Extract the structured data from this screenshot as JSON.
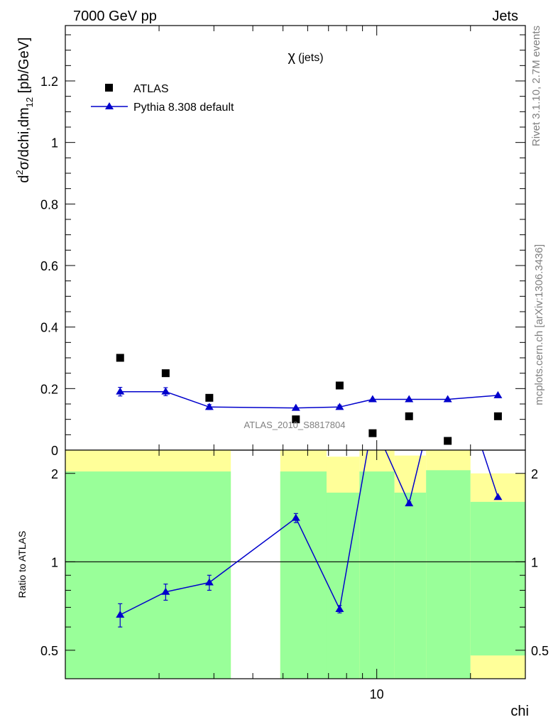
{
  "header": {
    "left": "7000 GeV pp",
    "right": "Jets"
  },
  "side_labels": {
    "rivet": "Rivet 3.1.10,  2.7M events",
    "mcplots": "mcplots.cern.ch [arXiv:1306.3436]"
  },
  "watermark": "ATLAS_2010_S8817804",
  "colors": {
    "data": "#000000",
    "mc": "#0000cc",
    "band_inner": "#99ff99",
    "band_outer": "#ffff99"
  },
  "chart_data": [
    {
      "type": "scatter",
      "title": "χ (jets)",
      "title_parts": {
        "symbol": "χ",
        "suffix": "(jets)"
      },
      "ylabel": "d²σ/dchi,dm₁₂ [pb/GeV]",
      "ylabel_parts": {
        "d": "d",
        "sup": "2",
        "mid": "σ/dchi,dm",
        "sub": "12",
        "tail": " [pb/GeV]"
      },
      "xscale": "log",
      "xlim": [
        1.0,
        30.0
      ],
      "ylim": [
        0,
        1.38
      ],
      "yticks": [
        0,
        0.2,
        0.4,
        0.6,
        0.8,
        1,
        1.2
      ],
      "ytick_labels": [
        "0",
        "0.2",
        "0.4",
        "0.6",
        "0.8",
        "1",
        "1.2"
      ],
      "legend_position": "top-left",
      "series": [
        {
          "name": "ATLAS",
          "marker": "square",
          "x": [
            1.5,
            2.1,
            2.9,
            5.5,
            7.6,
            9.7,
            12.7,
            16.9,
            24.5
          ],
          "y": [
            0.3,
            0.25,
            0.17,
            0.1,
            0.21,
            0.055,
            0.11,
            0.03,
            0.11
          ]
        },
        {
          "name": "Pythia 8.308 default",
          "marker": "triangle",
          "x": [
            1.5,
            2.1,
            2.9,
            5.5,
            7.6,
            9.7,
            12.7,
            16.9,
            24.5
          ],
          "y": [
            0.19,
            0.19,
            0.14,
            0.137,
            0.14,
            0.165,
            0.165,
            0.165,
            0.178
          ],
          "yerr": [
            0.014,
            0.013,
            0.008,
            0.0,
            0.006,
            0.0,
            0.0,
            0.0,
            0.0
          ]
        }
      ]
    },
    {
      "type": "line",
      "ylabel": "Ratio to ATLAS",
      "xlabel": "chi",
      "xscale": "log",
      "yscale": "log",
      "xlim": [
        1.0,
        30.0
      ],
      "ylim": [
        0.4,
        2.4
      ],
      "xticks": [
        10
      ],
      "xtick_labels": [
        "10"
      ],
      "yticks": [
        0.5,
        1,
        2
      ],
      "ytick_labels": [
        "0.5",
        "1",
        "2"
      ],
      "reference_line": 1,
      "bands": [
        {
          "x_range": [
            1.0,
            3.4
          ],
          "inner": [
            0.4,
            2.03
          ],
          "outer": [
            0.4,
            2.4
          ]
        },
        {
          "x_range": [
            4.9,
            6.9
          ],
          "inner": [
            0.4,
            2.03
          ],
          "outer": [
            0.4,
            2.4
          ]
        },
        {
          "x_range": [
            6.9,
            8.8
          ],
          "inner": [
            0.4,
            1.72
          ],
          "outer": [
            0.4,
            2.28
          ]
        },
        {
          "x_range": [
            8.8,
            11.4
          ],
          "inner": [
            0.4,
            2.03
          ],
          "outer": [
            0.4,
            2.4
          ]
        },
        {
          "x_range": [
            11.4,
            14.4
          ],
          "inner": [
            0.4,
            1.72
          ],
          "outer": [
            0.4,
            2.3
          ]
        },
        {
          "x_range": [
            14.4,
            20.0
          ],
          "inner": [
            0.4,
            2.05
          ],
          "outer": [
            0.4,
            2.4
          ]
        },
        {
          "x_range": [
            20.0,
            30.0
          ],
          "inner": [
            0.48,
            1.6
          ],
          "outer": [
            0.4,
            2.0
          ]
        }
      ],
      "series": [
        {
          "name": "Pythia 8.308 default",
          "x": [
            1.5,
            2.1,
            2.9,
            5.5,
            7.6,
            9.7,
            12.7,
            16.9,
            24.5
          ],
          "y": [
            0.66,
            0.79,
            0.85,
            1.41,
            0.69,
            3.0,
            1.58,
            5.5,
            1.66
          ],
          "yerr": [
            0.06,
            0.05,
            0.05,
            0.05,
            0.02,
            0.0,
            0.02,
            0.0,
            0.0
          ]
        }
      ]
    }
  ]
}
